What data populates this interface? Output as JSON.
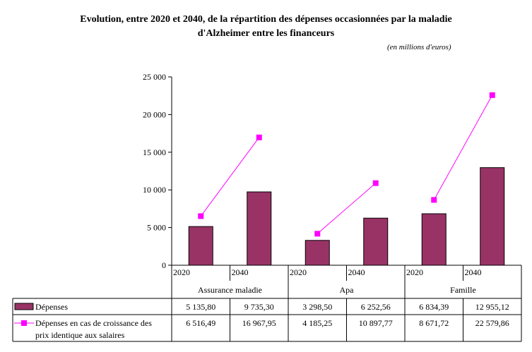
{
  "title_line1": "Evolution, entre 2020 et 2040, de la répartition des dépenses occasionnées par la maladie",
  "title_line2": "d'Alzheimer entre les financeurs",
  "unit_note": "(en millions d'euros)",
  "colors": {
    "bar": "#993366",
    "line": "#FF00FF"
  },
  "chart_data": {
    "type": "bar",
    "title": "Evolution, entre 2020 et 2040, de la répartition des dépenses occasionnées par la maladie d'Alzheimer entre les financeurs",
    "subtitle": "(en millions d'euros)",
    "ylim": [
      0,
      25000
    ],
    "yticks": [
      0,
      5000,
      10000,
      15000,
      20000,
      25000
    ],
    "ytick_labels": [
      "0",
      "5 000",
      "10 000",
      "15 000",
      "20 000",
      "25 000"
    ],
    "groups": [
      "Assurance maladie",
      "Apa",
      "Famille"
    ],
    "categories": [
      "2020",
      "2040",
      "2020",
      "2040",
      "2020",
      "2040"
    ],
    "series": [
      {
        "name": "Dépenses",
        "kind": "bar",
        "values": [
          5135.8,
          9735.3,
          3298.5,
          6252.56,
          6834.39,
          12955.12
        ],
        "labels": [
          "5 135,80",
          "9 735,30",
          "3 298,50",
          "6 252,56",
          "6 834,39",
          "12 955,12"
        ]
      },
      {
        "name": "Dépenses en cas de croissance des prix identique aux salaires",
        "kind": "line",
        "values": [
          6516.49,
          16967.95,
          4185.25,
          10897.77,
          8671.72,
          22579.86
        ],
        "labels": [
          "6 516,49",
          "16 967,95",
          "4 185,25",
          "10 897,77",
          "8 671,72",
          "22 579,86"
        ]
      }
    ],
    "legend_line1": "Dépenses en cas de croissance des",
    "legend_line2": "prix identique aux salaires",
    "grid": false,
    "legend": "data-table-bottom"
  }
}
